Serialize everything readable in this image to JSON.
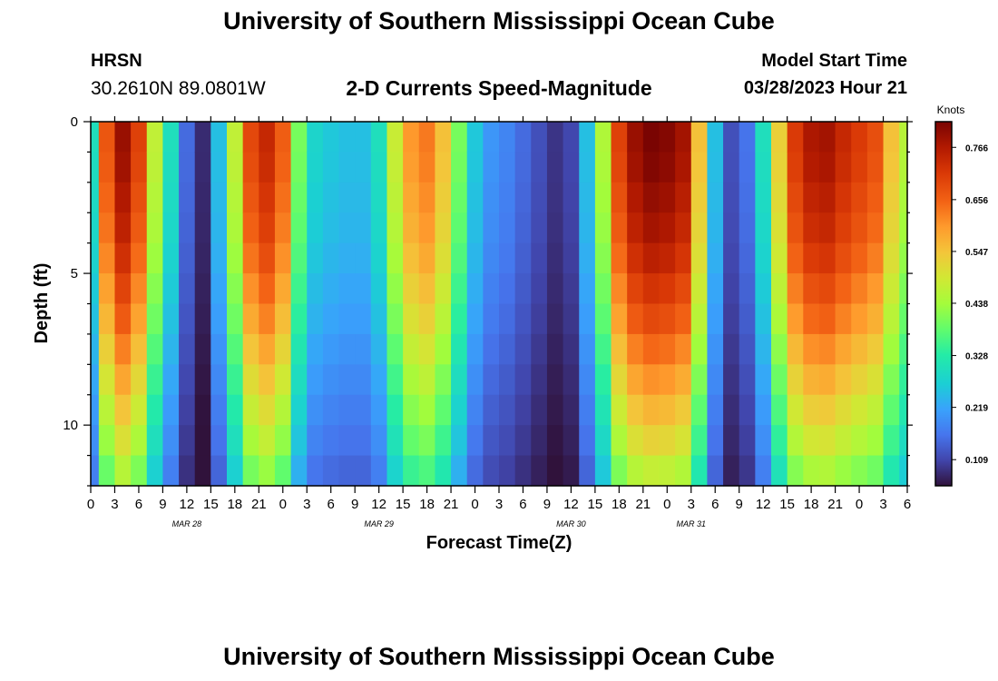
{
  "header": {
    "top_title": "University of Southern Mississippi Ocean Cube",
    "bottom_title": "University of Southern Mississippi Ocean Cube",
    "station_name": "HRSN",
    "station_coords": "30.2610N  89.0801W",
    "chart_title": "2-D Currents Speed-Magnitude",
    "start_label": "Model Start Time",
    "start_value": "03/28/2023 Hour 21"
  },
  "chart_data": {
    "type": "heatmap",
    "title": "2-D Currents Speed-Magnitude",
    "xlabel": "Forecast Time(Z)",
    "ylabel": "Depth (ft)",
    "colorbar_label": "Knots",
    "colorbar_ticks": [
      "0.766",
      "0.656",
      "0.547",
      "0.438",
      "0.328",
      "0.219",
      "0.109"
    ],
    "colorbar_tick_values": [
      0.766,
      0.656,
      0.547,
      0.438,
      0.328,
      0.219,
      0.109
    ],
    "colorbar_range": [
      0.054,
      0.82
    ],
    "x_tick_labels": [
      "0",
      "3",
      "6",
      "9",
      "12",
      "15",
      "18",
      "21",
      "0",
      "3",
      "6",
      "9",
      "12",
      "15",
      "18",
      "21",
      "0",
      "3",
      "6",
      "9",
      "12",
      "15",
      "18",
      "21",
      "0",
      "3",
      "6",
      "9",
      "12",
      "15",
      "18",
      "21",
      "0",
      "3",
      "6"
    ],
    "date_labels": [
      "MAR 28",
      "MAR 29",
      "MAR 30",
      "MAR 31"
    ],
    "date_label_ticks": [
      4,
      12,
      20,
      25
    ],
    "y_tick_labels": [
      "0",
      "5",
      "10"
    ],
    "y_tick_values": [
      0,
      5,
      10
    ],
    "y_range": [
      0,
      12
    ],
    "y_axis": "depth increasing downward",
    "x_range_hours": [
      0,
      102
    ],
    "depth_rows": [
      0.5,
      1.5,
      2.5,
      3.5,
      4.5,
      5.5,
      6.5,
      7.5,
      8.5,
      9.5,
      10.5,
      11.5
    ],
    "hours": [
      0,
      2,
      4,
      6,
      8,
      10,
      12,
      14,
      16,
      18,
      20,
      22,
      24,
      26,
      28,
      30,
      32,
      34,
      36,
      38,
      40,
      42,
      44,
      46,
      48,
      50,
      52,
      54,
      56,
      58,
      60,
      62,
      64,
      66,
      68,
      70,
      72,
      74,
      76,
      78,
      80,
      82,
      84,
      86,
      88,
      90,
      92,
      94,
      96,
      98,
      100,
      102
    ],
    "speed_profile_knots": [
      0.3,
      0.67,
      0.79,
      0.7,
      0.47,
      0.3,
      0.15,
      0.08,
      0.25,
      0.47,
      0.69,
      0.74,
      0.66,
      0.4,
      0.28,
      0.26,
      0.25,
      0.25,
      0.3,
      0.48,
      0.6,
      0.63,
      0.55,
      0.4,
      0.26,
      0.2,
      0.18,
      0.15,
      0.12,
      0.09,
      0.11,
      0.25,
      0.45,
      0.7,
      0.79,
      0.82,
      0.81,
      0.78,
      0.55,
      0.25,
      0.12,
      0.16,
      0.3,
      0.53,
      0.71,
      0.77,
      0.78,
      0.74,
      0.71,
      0.68,
      0.55,
      0.46
    ],
    "depth_factors": [
      1.0,
      0.99,
      0.97,
      0.95,
      0.92,
      0.88,
      0.84,
      0.79,
      0.74,
      0.69,
      0.64,
      0.58
    ],
    "grid": false
  }
}
